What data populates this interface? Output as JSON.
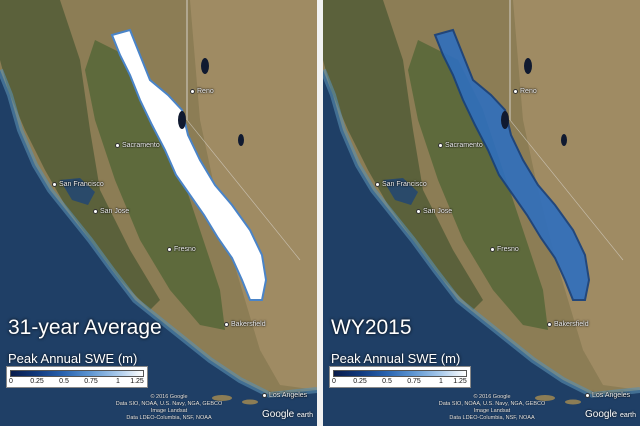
{
  "panels": [
    {
      "title": "31-year Average",
      "legend_label": "Peak Annual SWE (m)",
      "snow_fill": "#ffffff",
      "snow_edge": "#4a84c8"
    },
    {
      "title": "WY2015",
      "legend_label": "Peak Annual SWE (m)",
      "snow_fill": "#2f6fbe",
      "snow_edge": "#16407e"
    }
  ],
  "legend": {
    "ticks": [
      "0",
      "0.25",
      "0.5",
      "0.75",
      "1",
      "1.25"
    ],
    "ramp": [
      "#0a1c4a",
      "#123a7e",
      "#2a64b0",
      "#5e96d2",
      "#a6c8ea",
      "#ffffff"
    ]
  },
  "cities": {
    "reno": "Reno",
    "sacramento": "Sacramento",
    "san_francisco": "San Francisco",
    "san_jose": "San Jose",
    "fresno": "Fresno",
    "bakersfield": "Bakersfield",
    "los_angeles": "Los Angeles"
  },
  "credits": {
    "line1": "© 2016 Google",
    "line2": "Data SIO, NOAA, U.S. Navy, NGA, GEBCO",
    "line3": "Image Landsat",
    "line4": "Data LDEO-Columbia, NSF, NOAA"
  },
  "logo": {
    "brand": "Google",
    "product": "earth"
  },
  "colors": {
    "ocean": "#1f3f66",
    "coast_ocean": "#3b6a8a",
    "land": "#8c7d55",
    "valley": "#5e6a3c",
    "mountains": "#6b6a3e",
    "desert": "#a48f66"
  }
}
